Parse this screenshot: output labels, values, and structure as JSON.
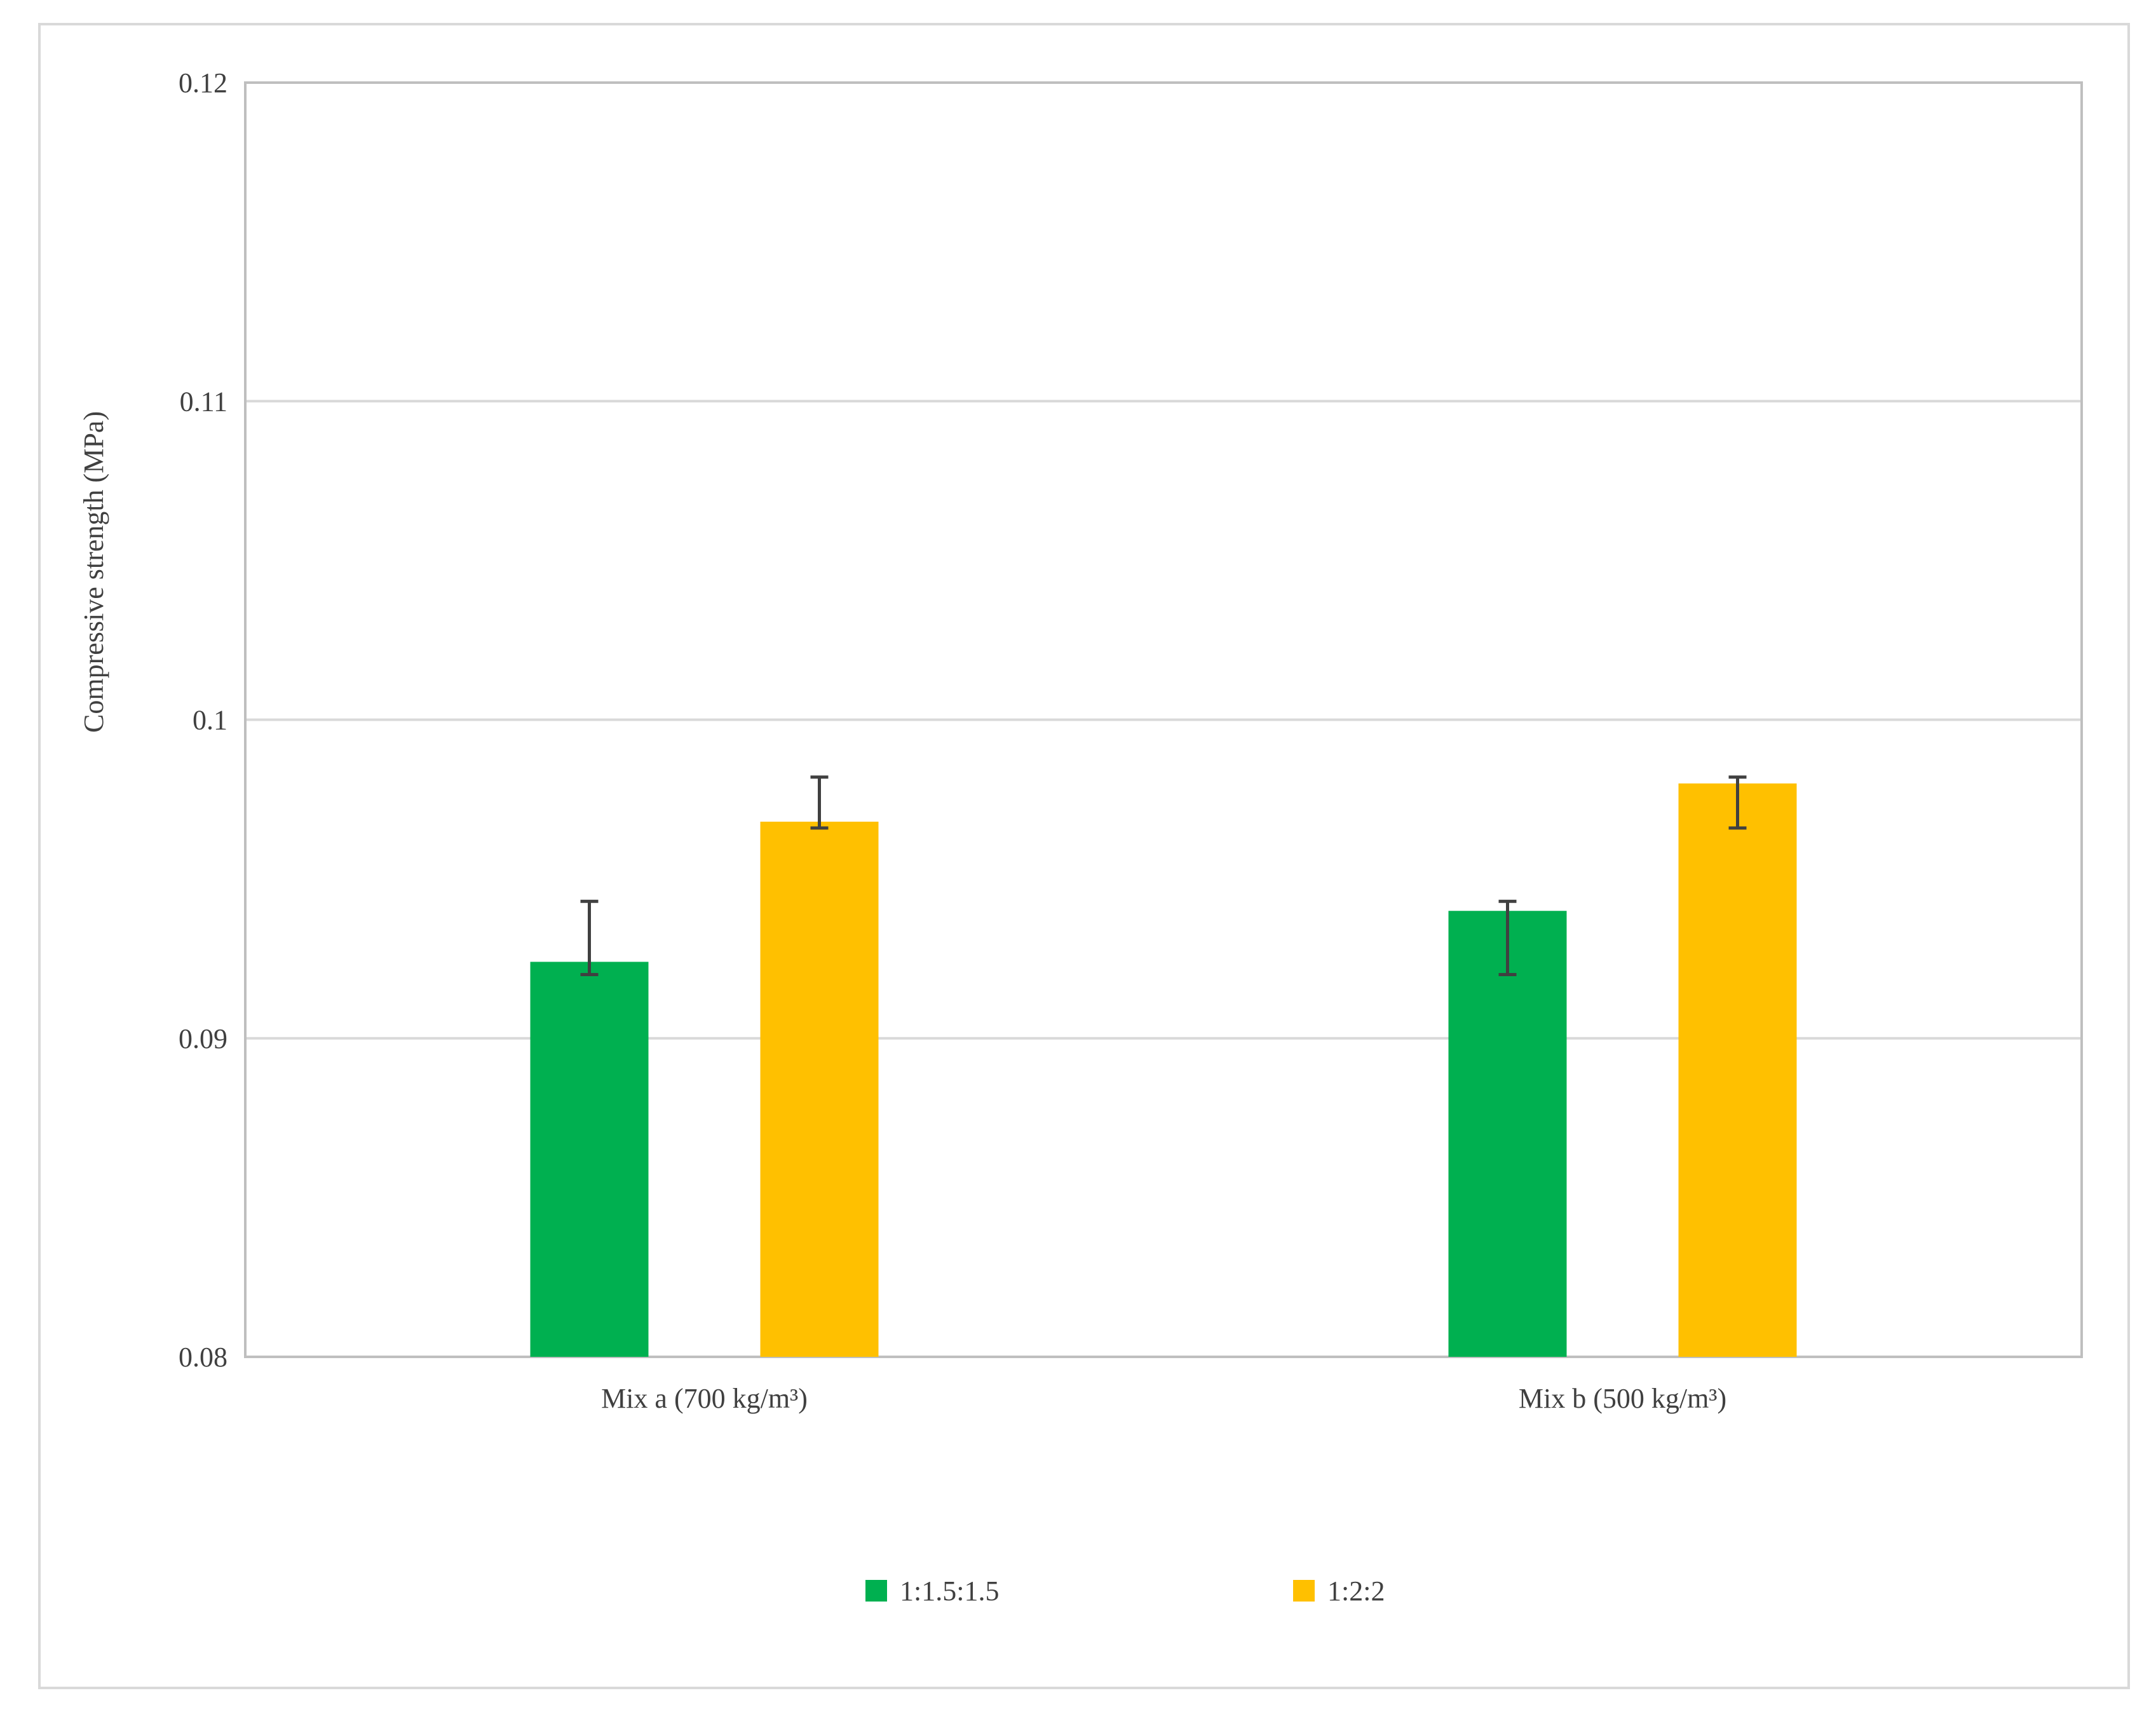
{
  "chart_data": {
    "type": "bar",
    "title": "",
    "xlabel": "",
    "ylabel": "Compressive strength (MPa)",
    "categories": [
      "Mix a (700 kg/m³)",
      "Mix b (500 kg/m³)"
    ],
    "ylim": [
      0.08,
      0.12
    ],
    "yticks": [
      0.08,
      0.09,
      0.1,
      0.11,
      0.12
    ],
    "ytick_labels": [
      "0.08",
      "0.09",
      "0.1",
      "0.11",
      "0.12"
    ],
    "grid": true,
    "legend_position": "bottom",
    "series": [
      {
        "name": "1:1.5:1.5",
        "color": "#00b050",
        "values": [
          0.0924,
          0.094
        ],
        "error_low": [
          0.092,
          0.092
        ],
        "error_high": [
          0.0943,
          0.0943
        ]
      },
      {
        "name": "1:2:2",
        "color": "#ffc000",
        "values": [
          0.0968,
          0.098
        ],
        "error_low": [
          0.0966,
          0.0966
        ],
        "error_high": [
          0.0982,
          0.0982
        ]
      }
    ]
  }
}
